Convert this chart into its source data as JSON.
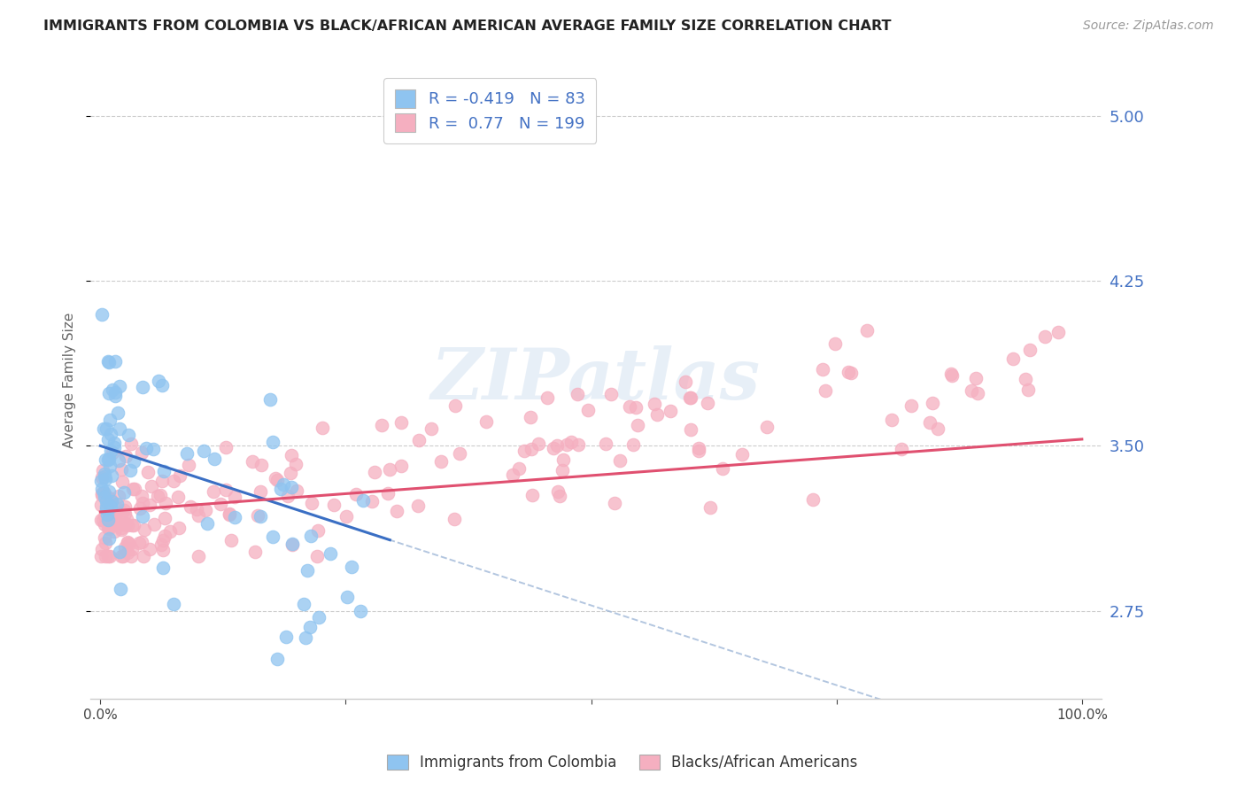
{
  "title": "IMMIGRANTS FROM COLOMBIA VS BLACK/AFRICAN AMERICAN AVERAGE FAMILY SIZE CORRELATION CHART",
  "source": "Source: ZipAtlas.com",
  "ylabel": "Average Family Size",
  "xlim": [
    -0.01,
    1.02
  ],
  "ylim": [
    2.35,
    5.25
  ],
  "yticks": [
    2.75,
    3.5,
    4.25,
    5.0
  ],
  "R1": -0.419,
  "N1": 83,
  "R2": 0.77,
  "N2": 199,
  "legend1": "Immigrants from Colombia",
  "legend2": "Blacks/African Americans",
  "watermark": "ZIPatlas",
  "background_color": "#ffffff",
  "grid_color": "#cccccc",
  "title_color": "#222222",
  "axis_color": "#4472c4",
  "series1_color": "#8fc4f0",
  "series1_line_color": "#3a6fc4",
  "series2_color": "#f5afc0",
  "series2_line_color": "#e05070"
}
